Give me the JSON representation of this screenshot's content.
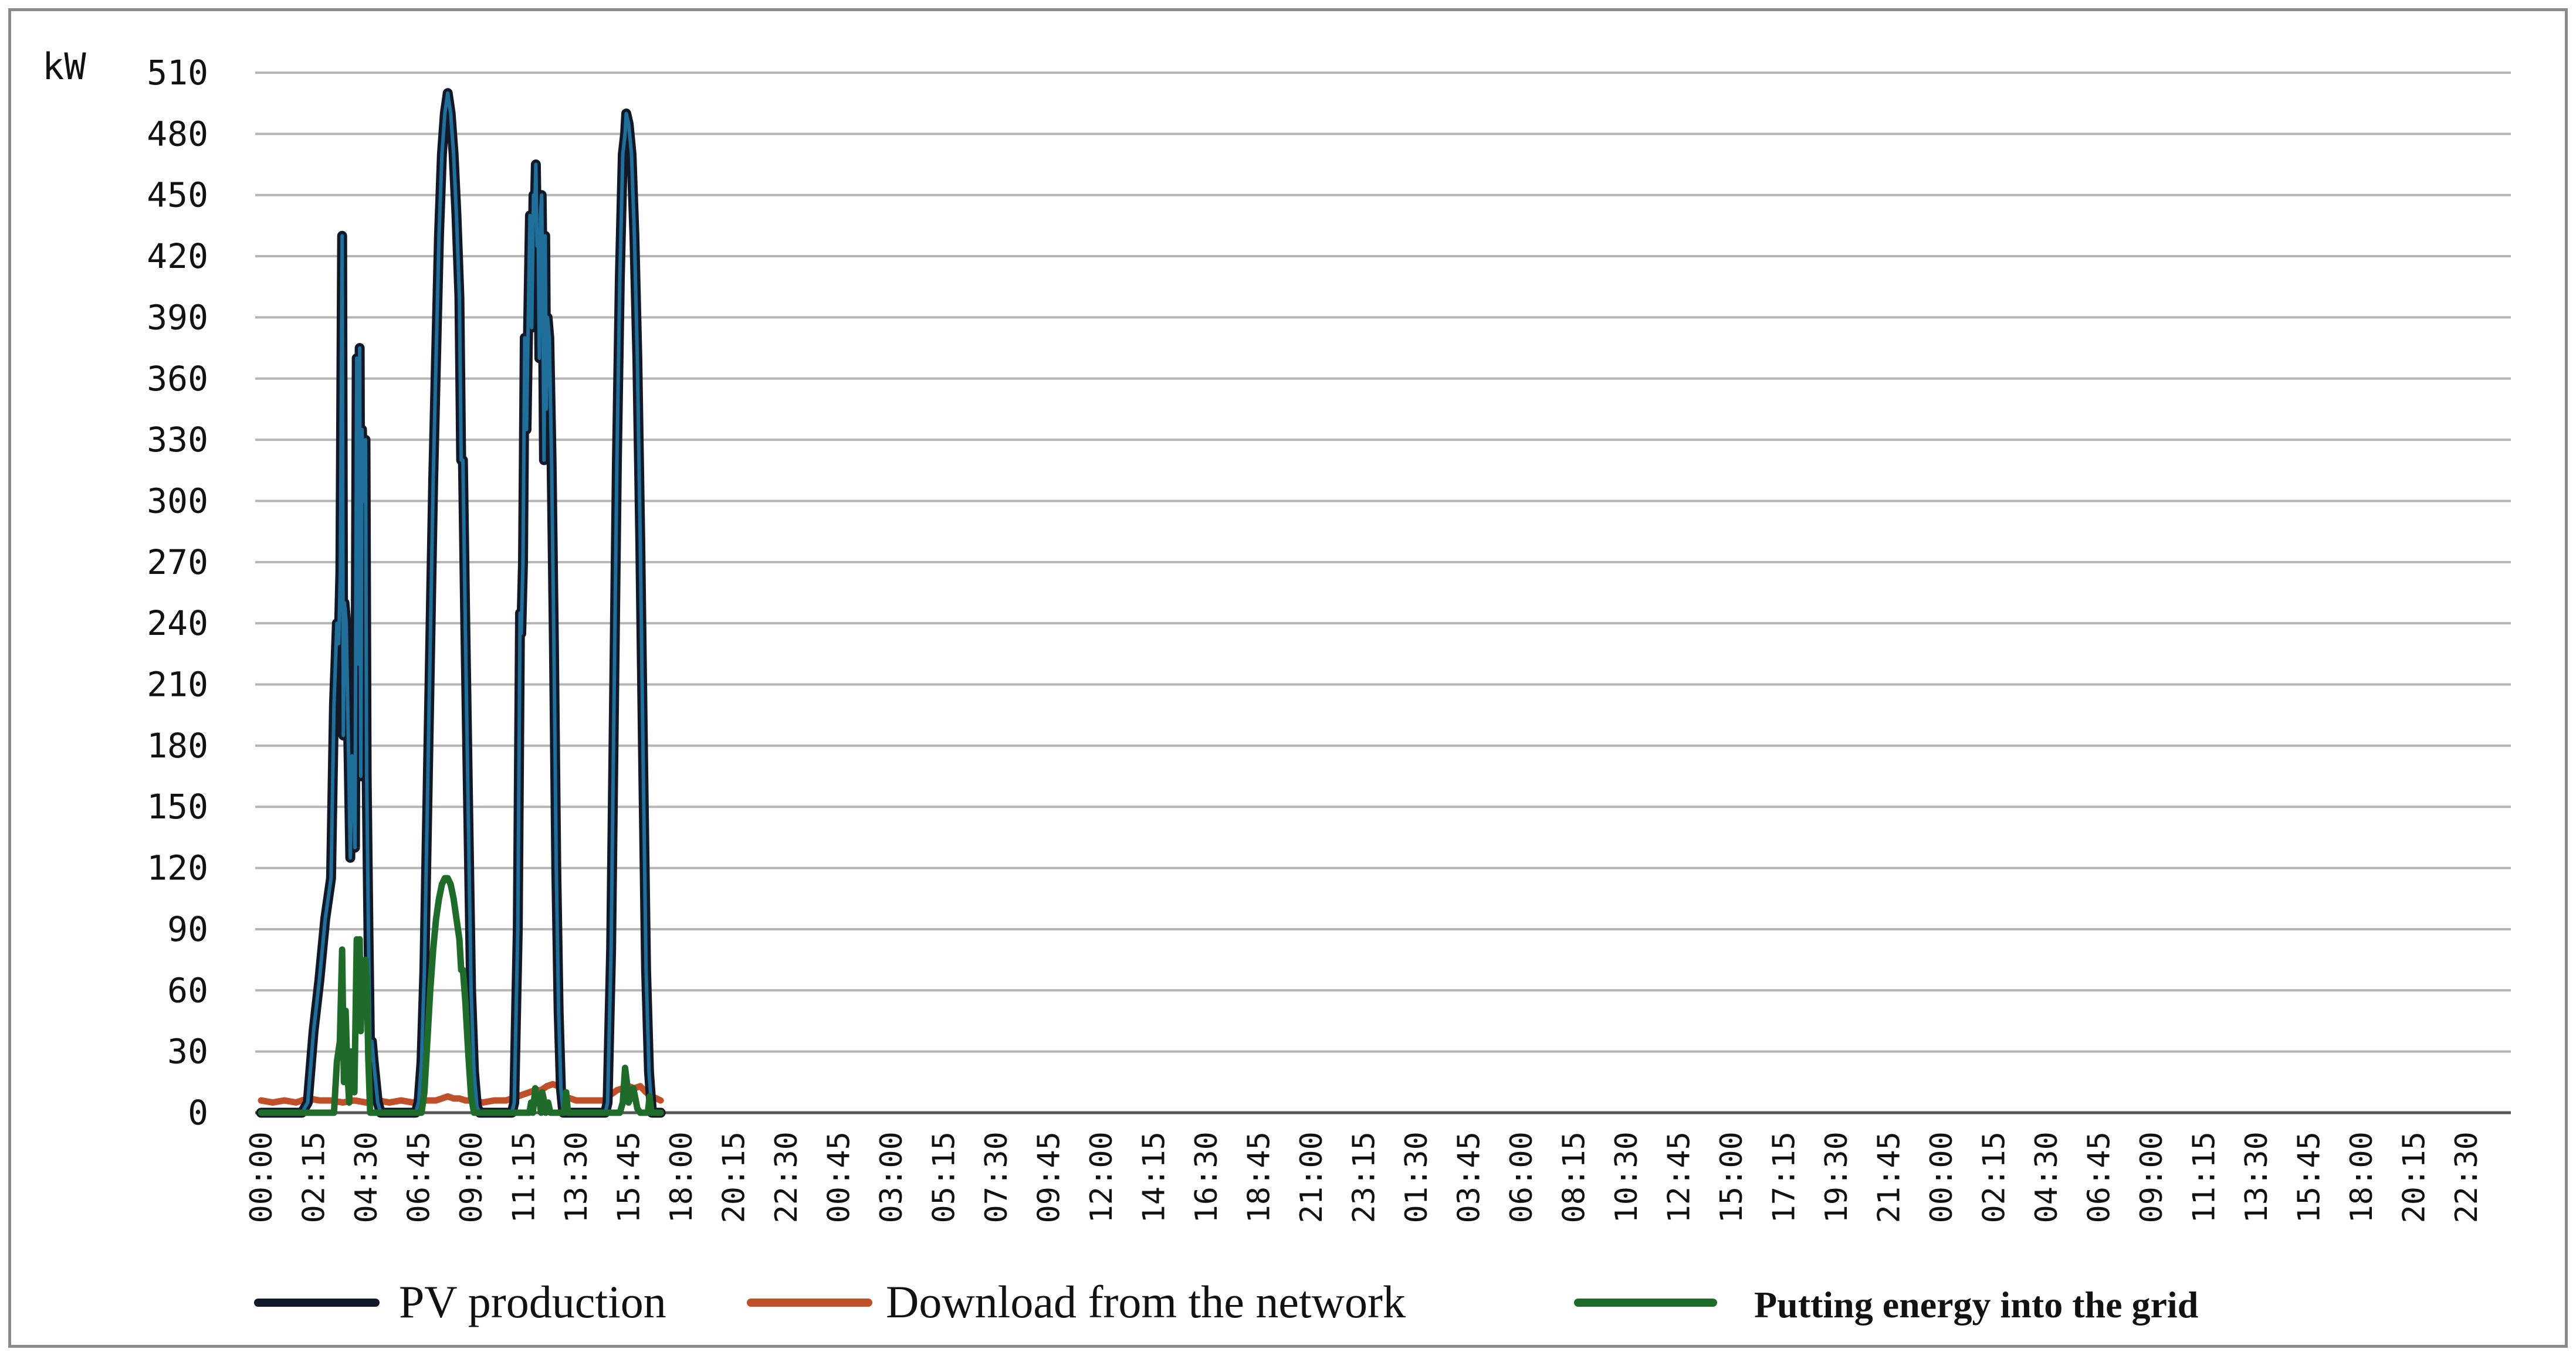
{
  "chart_data": {
    "type": "line",
    "ylabel": "kW",
    "ylim": [
      0,
      510
    ],
    "y_ticks": [
      0,
      30,
      60,
      90,
      120,
      150,
      180,
      210,
      240,
      270,
      300,
      330,
      360,
      390,
      420,
      450,
      480,
      510
    ],
    "x_tick_labels": [
      "00:00",
      "02:15",
      "04:30",
      "06:45",
      "09:00",
      "11:15",
      "13:30",
      "15:45",
      "18:00",
      "20:15",
      "22:30",
      "00:45",
      "03:00",
      "05:15",
      "07:30",
      "09:45",
      "12:00",
      "14:15",
      "16:30",
      "18:45",
      "21:00",
      "23:15",
      "01:30",
      "03:45",
      "06:00",
      "08:15",
      "10:30",
      "12:45",
      "15:00",
      "17:15",
      "19:30",
      "21:45",
      "00:00",
      "02:15",
      "04:30",
      "06:45",
      "09:00",
      "11:15",
      "13:30",
      "15:45",
      "18:00",
      "20:15",
      "22:30"
    ],
    "grid": true,
    "legend_position": "bottom",
    "x_points_per_tick": 9,
    "series": [
      {
        "name": "PV production",
        "color": "#111827",
        "highlight_color": "#1f6f9a",
        "points": [
          [
            0,
            0
          ],
          [
            7,
            0
          ],
          [
            8,
            5
          ],
          [
            9,
            40
          ],
          [
            10,
            65
          ],
          [
            11,
            95
          ],
          [
            12,
            115
          ],
          [
            12.5,
            200
          ],
          [
            13,
            240
          ],
          [
            13.3,
            230
          ],
          [
            13.6,
            265
          ],
          [
            13.9,
            430
          ],
          [
            14.1,
            185
          ],
          [
            14.3,
            250
          ],
          [
            14.6,
            240
          ],
          [
            15,
            175
          ],
          [
            15.3,
            125
          ],
          [
            15.6,
            175
          ],
          [
            15.9,
            160
          ],
          [
            16.1,
            130
          ],
          [
            16.4,
            370
          ],
          [
            16.7,
            220
          ],
          [
            16.9,
            375
          ],
          [
            17.1,
            165
          ],
          [
            17.3,
            335
          ],
          [
            17.6,
            300
          ],
          [
            17.9,
            330
          ],
          [
            18.1,
            165
          ],
          [
            18.4,
            90
          ],
          [
            18.7,
            25
          ],
          [
            19,
            35
          ],
          [
            19.3,
            25
          ],
          [
            20,
            5
          ],
          [
            20.5,
            0
          ],
          [
            26.5,
            0
          ],
          [
            27,
            5
          ],
          [
            27.5,
            25
          ],
          [
            28,
            70
          ],
          [
            28.5,
            150
          ],
          [
            29,
            230
          ],
          [
            29.5,
            310
          ],
          [
            30,
            370
          ],
          [
            30.5,
            430
          ],
          [
            31,
            470
          ],
          [
            31.5,
            490
          ],
          [
            32,
            500
          ],
          [
            32.5,
            490
          ],
          [
            33,
            470
          ],
          [
            33.5,
            440
          ],
          [
            34,
            400
          ],
          [
            34.3,
            320
          ],
          [
            34.6,
            320
          ],
          [
            35,
            240
          ],
          [
            35.5,
            150
          ],
          [
            36,
            60
          ],
          [
            36.5,
            20
          ],
          [
            37,
            3
          ],
          [
            37.5,
            0
          ],
          [
            43,
            0
          ],
          [
            43.4,
            5
          ],
          [
            44,
            90
          ],
          [
            44.4,
            245
          ],
          [
            44.6,
            235
          ],
          [
            44.9,
            270
          ],
          [
            45.2,
            380
          ],
          [
            45.5,
            335
          ],
          [
            45.8,
            390
          ],
          [
            46.1,
            440
          ],
          [
            46.4,
            385
          ],
          [
            46.7,
            450
          ],
          [
            46.9,
            440
          ],
          [
            47.1,
            465
          ],
          [
            47.3,
            425
          ],
          [
            47.5,
            430
          ],
          [
            47.7,
            370
          ],
          [
            47.9,
            440
          ],
          [
            48.1,
            450
          ],
          [
            48.3,
            400
          ],
          [
            48.5,
            320
          ],
          [
            48.7,
            430
          ],
          [
            48.9,
            345
          ],
          [
            49.1,
            390
          ],
          [
            49.4,
            380
          ],
          [
            49.8,
            320
          ],
          [
            50.2,
            230
          ],
          [
            50.6,
            120
          ],
          [
            51,
            50
          ],
          [
            51.4,
            12
          ],
          [
            51.8,
            0
          ],
          [
            59,
            0
          ],
          [
            59.4,
            5
          ],
          [
            60,
            80
          ],
          [
            60.5,
            200
          ],
          [
            61,
            320
          ],
          [
            61.5,
            410
          ],
          [
            62,
            470
          ],
          [
            62.4,
            480
          ],
          [
            62.6,
            490
          ],
          [
            63,
            485
          ],
          [
            63.5,
            470
          ],
          [
            64,
            430
          ],
          [
            64.5,
            370
          ],
          [
            65,
            280
          ],
          [
            65.5,
            170
          ],
          [
            66,
            70
          ],
          [
            66.5,
            20
          ],
          [
            67,
            0
          ],
          [
            68.5,
            0
          ]
        ]
      },
      {
        "name": "Download from the network",
        "color": "#c0502a",
        "points": [
          [
            0,
            6
          ],
          [
            2,
            5
          ],
          [
            4,
            6
          ],
          [
            6,
            5
          ],
          [
            8,
            7
          ],
          [
            10,
            6
          ],
          [
            12,
            6
          ],
          [
            14,
            5
          ],
          [
            16,
            6
          ],
          [
            18,
            5
          ],
          [
            20,
            6
          ],
          [
            22,
            5
          ],
          [
            24,
            6
          ],
          [
            26,
            5
          ],
          [
            28,
            6
          ],
          [
            30,
            6
          ],
          [
            31,
            7
          ],
          [
            32,
            8
          ],
          [
            33,
            7
          ],
          [
            34,
            7
          ],
          [
            35,
            6
          ],
          [
            36,
            6
          ],
          [
            38,
            5
          ],
          [
            40,
            6
          ],
          [
            42,
            6
          ],
          [
            44,
            8
          ],
          [
            45,
            9
          ],
          [
            46,
            10
          ],
          [
            47,
            11
          ],
          [
            48,
            11
          ],
          [
            49,
            13
          ],
          [
            50,
            14
          ],
          [
            51,
            13
          ],
          [
            52,
            8
          ],
          [
            54,
            6
          ],
          [
            56,
            6
          ],
          [
            58,
            6
          ],
          [
            59,
            6
          ],
          [
            60,
            9
          ],
          [
            61,
            11
          ],
          [
            62,
            12
          ],
          [
            63,
            13
          ],
          [
            64,
            12
          ],
          [
            65,
            13
          ],
          [
            66,
            10
          ],
          [
            67,
            8
          ],
          [
            68.5,
            6
          ]
        ]
      },
      {
        "name": "Putting energy into the grid",
        "color": "#1e6b2a",
        "points": [
          [
            0,
            0
          ],
          [
            12.5,
            0
          ],
          [
            13,
            25
          ],
          [
            13.5,
            35
          ],
          [
            13.9,
            80
          ],
          [
            14.2,
            15
          ],
          [
            14.5,
            50
          ],
          [
            14.8,
            20
          ],
          [
            15.1,
            5
          ],
          [
            15.4,
            30
          ],
          [
            15.7,
            20
          ],
          [
            16,
            10
          ],
          [
            16.4,
            85
          ],
          [
            16.7,
            55
          ],
          [
            16.9,
            85
          ],
          [
            17.1,
            40
          ],
          [
            17.3,
            70
          ],
          [
            17.6,
            60
          ],
          [
            17.9,
            75
          ],
          [
            18.1,
            65
          ],
          [
            18.4,
            25
          ],
          [
            18.7,
            0
          ],
          [
            20,
            0
          ],
          [
            27.5,
            0
          ],
          [
            28,
            10
          ],
          [
            28.5,
            35
          ],
          [
            29,
            60
          ],
          [
            29.5,
            80
          ],
          [
            30,
            95
          ],
          [
            30.5,
            105
          ],
          [
            31,
            112
          ],
          [
            31.5,
            115
          ],
          [
            32,
            115
          ],
          [
            32.5,
            112
          ],
          [
            33,
            105
          ],
          [
            33.5,
            95
          ],
          [
            34,
            85
          ],
          [
            34.3,
            70
          ],
          [
            34.6,
            70
          ],
          [
            35,
            55
          ],
          [
            35.5,
            30
          ],
          [
            36,
            8
          ],
          [
            36.5,
            0
          ],
          [
            46,
            0
          ],
          [
            46.3,
            5
          ],
          [
            46.6,
            0
          ],
          [
            47,
            12
          ],
          [
            47.3,
            5
          ],
          [
            47.6,
            8
          ],
          [
            48,
            0
          ],
          [
            48.2,
            10
          ],
          [
            48.5,
            6
          ],
          [
            48.8,
            0
          ],
          [
            49.2,
            5
          ],
          [
            49.6,
            0
          ],
          [
            52,
            0
          ],
          [
            52.3,
            10
          ],
          [
            52.6,
            0
          ],
          [
            61.5,
            0
          ],
          [
            62,
            5
          ],
          [
            62.4,
            22
          ],
          [
            62.7,
            15
          ],
          [
            63,
            5
          ],
          [
            63.4,
            8
          ],
          [
            63.8,
            12
          ],
          [
            64.1,
            8
          ],
          [
            64.5,
            2
          ],
          [
            65,
            0
          ],
          [
            66.3,
            0
          ],
          [
            66.6,
            8
          ],
          [
            66.9,
            0
          ],
          [
            68.5,
            0
          ]
        ]
      }
    ]
  }
}
